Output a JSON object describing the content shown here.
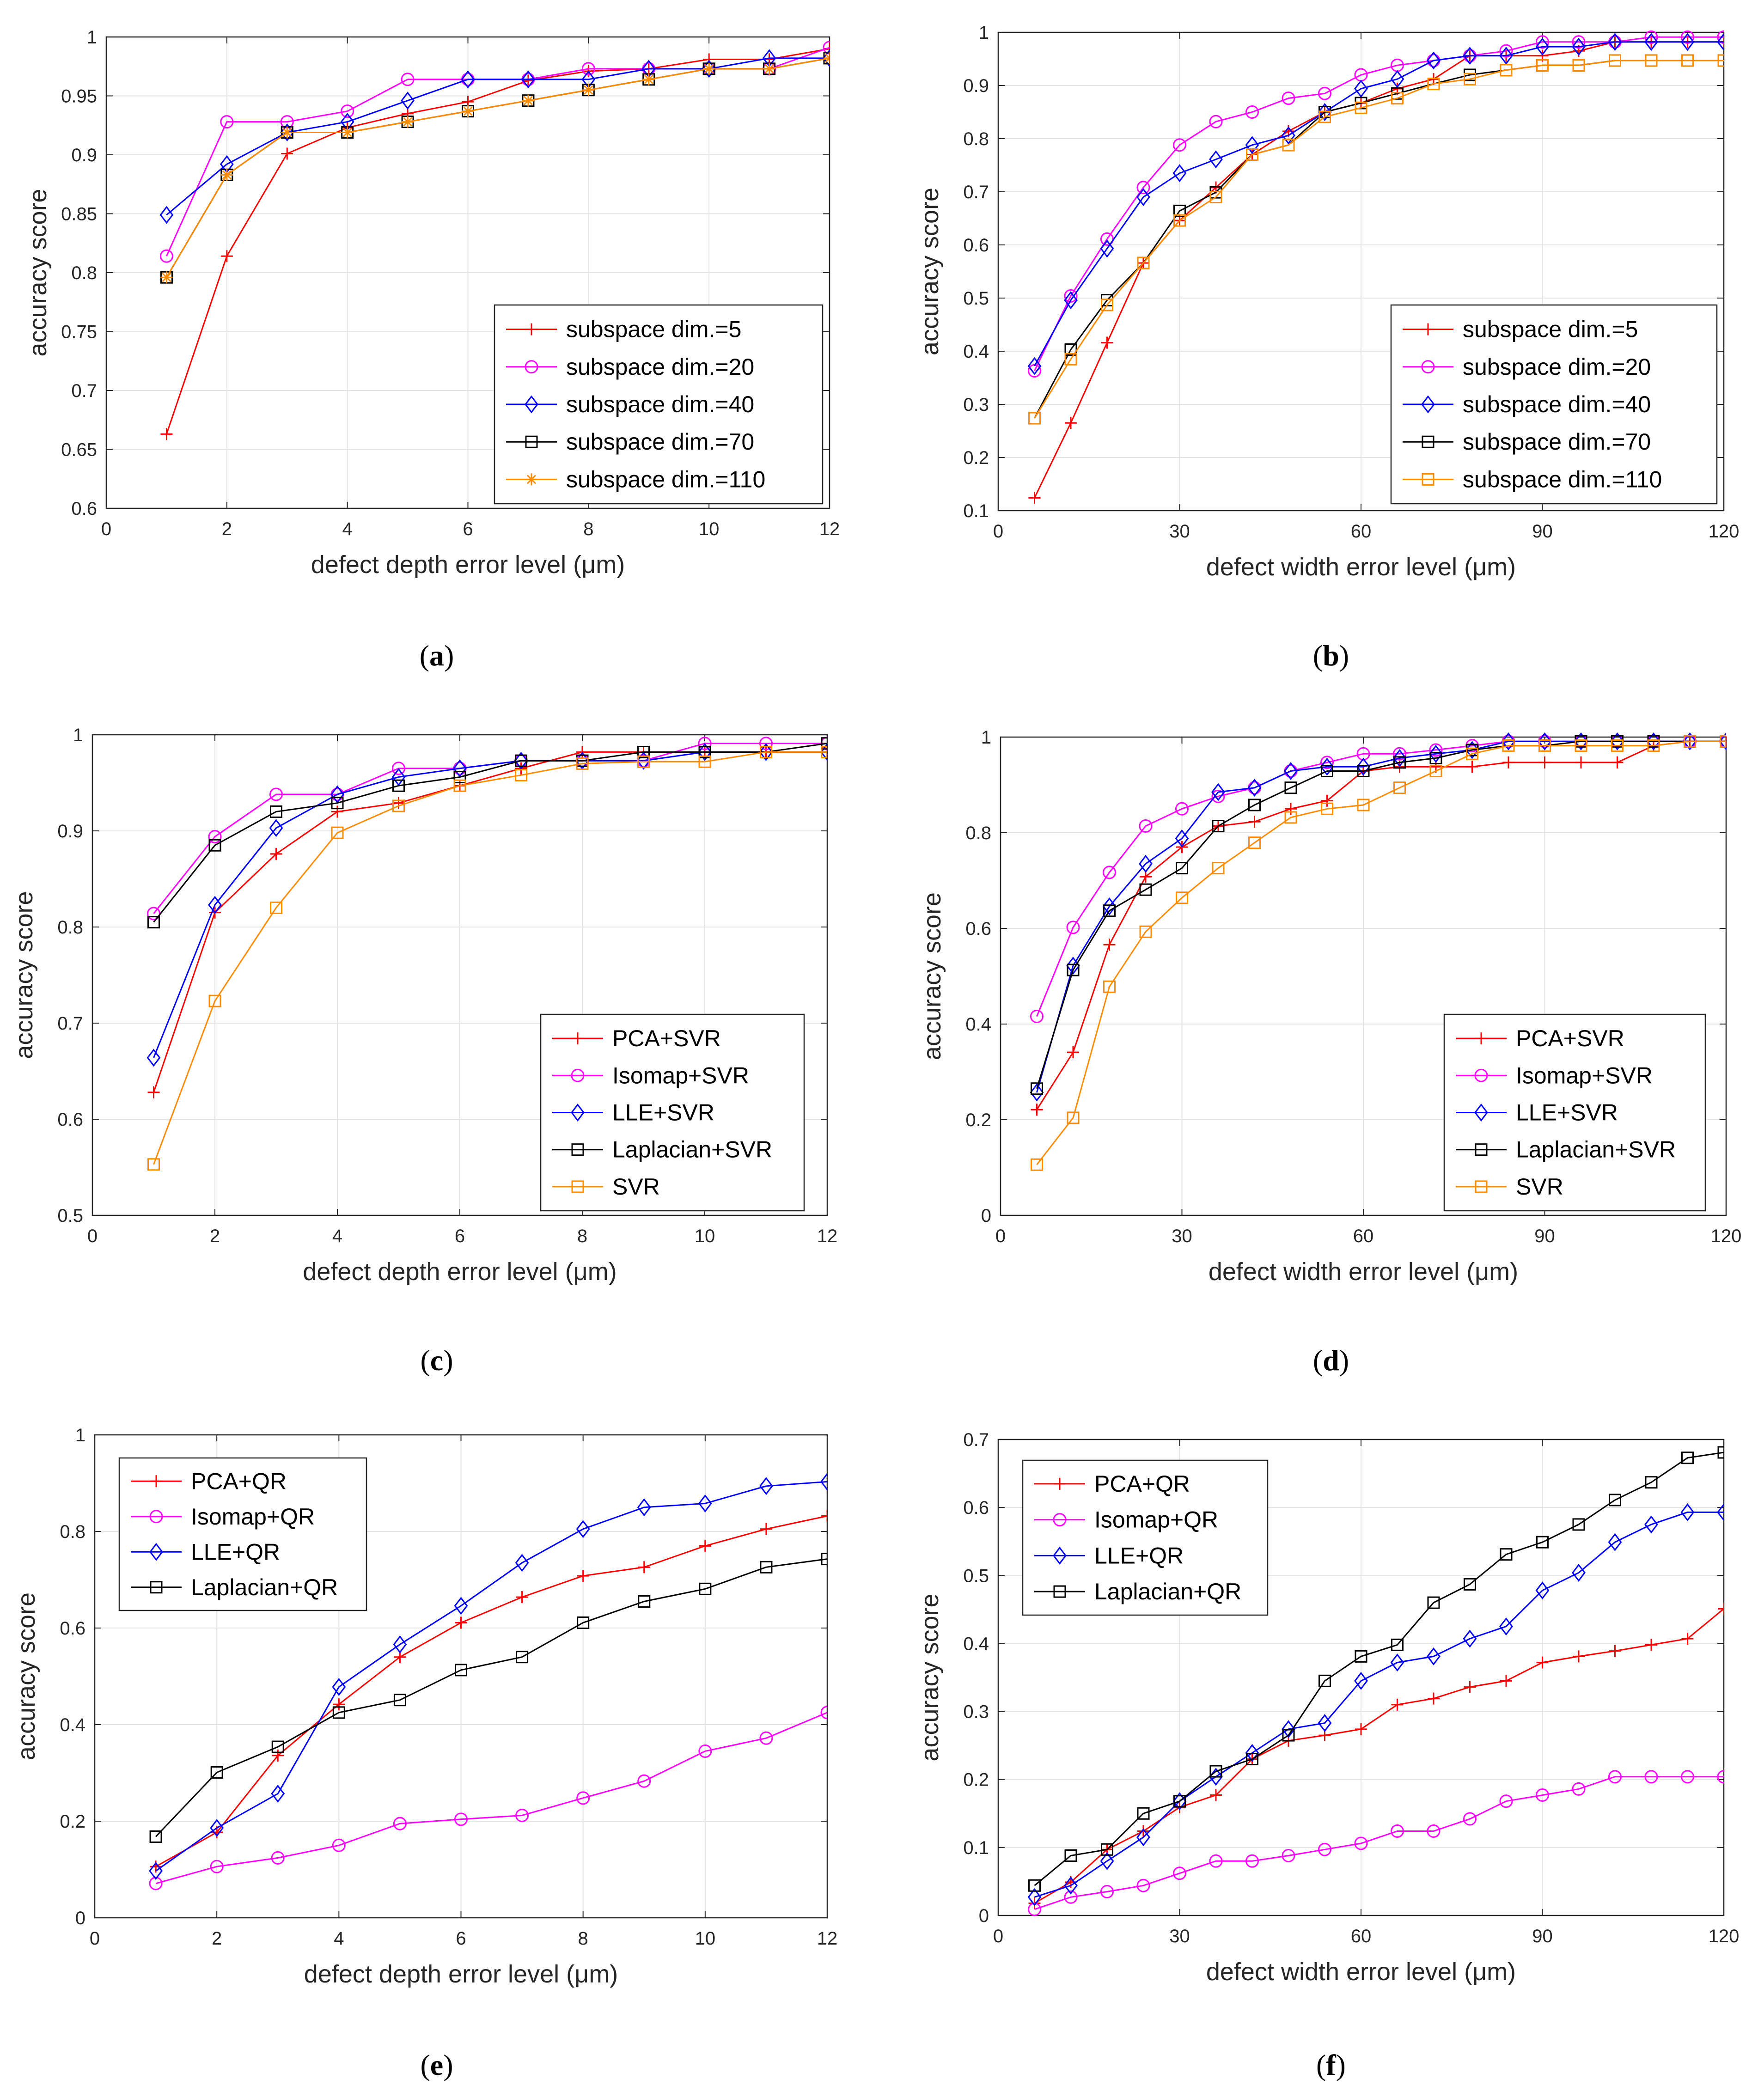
{
  "chart_data": [
    {
      "type": "line",
      "panel": "a",
      "caption": "a",
      "xlabel": "defect depth error level (μm)",
      "ylabel": "accuracy score",
      "xlim": [
        0,
        12
      ],
      "ylim": [
        0.6,
        1
      ],
      "xticks": [
        0,
        2,
        4,
        6,
        8,
        10,
        12
      ],
      "yticks": [
        0.6,
        0.65,
        0.7,
        0.75,
        0.8,
        0.85,
        0.9,
        0.95,
        1
      ],
      "ytick_labels": [
        "0.6",
        "0.65",
        "0.7",
        "0.75",
        "0.8",
        "0.85",
        "0.9",
        "0.95",
        "1"
      ],
      "x": [
        1,
        2,
        3,
        4,
        5,
        6,
        7,
        8,
        9,
        10,
        11,
        12
      ],
      "legend": "bottom-right",
      "series": [
        {
          "name": "subspace dim.=5",
          "color": "#ff0000",
          "marker": "plus",
          "values": [
            0.663,
            0.814,
            0.901,
            0.923,
            0.935,
            0.945,
            0.963,
            0.971,
            0.973,
            0.981,
            0.981,
            0.99
          ]
        },
        {
          "name": "subspace dim.=20",
          "color": "#ff00ff",
          "marker": "circle",
          "values": [
            0.814,
            0.928,
            0.928,
            0.937,
            0.964,
            0.964,
            0.964,
            0.973,
            0.973,
            0.973,
            0.973,
            0.991
          ]
        },
        {
          "name": "subspace dim.=40",
          "color": "#0000ff",
          "marker": "diamond",
          "values": [
            0.849,
            0.892,
            0.919,
            0.928,
            0.946,
            0.964,
            0.964,
            0.964,
            0.973,
            0.973,
            0.982,
            0.982
          ]
        },
        {
          "name": "subspace dim.=70",
          "color": "#000000",
          "marker": "square",
          "values": [
            0.796,
            0.883,
            0.919,
            0.919,
            0.928,
            0.937,
            0.946,
            0.955,
            0.964,
            0.973,
            0.973,
            0.982
          ]
        },
        {
          "name": "subspace dim.=110",
          "color": "#ff8c00",
          "marker": "star",
          "values": [
            0.796,
            0.883,
            0.919,
            0.919,
            0.928,
            0.937,
            0.946,
            0.955,
            0.964,
            0.973,
            0.973,
            0.982
          ]
        }
      ]
    },
    {
      "type": "line",
      "panel": "b",
      "caption": "b",
      "xlabel": "defect width error level (μm)",
      "ylabel": "accuracy score",
      "xlim": [
        0,
        120
      ],
      "ylim": [
        0.1,
        1
      ],
      "xticks": [
        0,
        30,
        60,
        90,
        120
      ],
      "yticks": [
        0.1,
        0.2,
        0.3,
        0.4,
        0.5,
        0.6,
        0.7,
        0.8,
        0.9,
        1
      ],
      "ytick_labels": [
        "0.1",
        "0.2",
        "0.3",
        "0.4",
        "0.5",
        "0.6",
        "0.7",
        "0.8",
        "0.9",
        "1"
      ],
      "x": [
        6,
        12,
        18,
        24,
        30,
        36,
        42,
        48,
        54,
        60,
        66,
        72,
        78,
        84,
        90,
        96,
        102,
        108,
        114,
        120
      ],
      "legend": "bottom-right",
      "series": [
        {
          "name": "subspace dim.=5",
          "color": "#ff0000",
          "marker": "plus",
          "values": [
            0.124,
            0.265,
            0.416,
            0.566,
            0.646,
            0.708,
            0.77,
            0.814,
            0.85,
            0.867,
            0.894,
            0.912,
            0.956,
            0.956,
            0.956,
            0.965,
            0.982,
            0.982,
            0.982,
            0.982
          ]
        },
        {
          "name": "subspace dim.=20",
          "color": "#ff00ff",
          "marker": "circle",
          "values": [
            0.363,
            0.504,
            0.611,
            0.708,
            0.788,
            0.832,
            0.85,
            0.876,
            0.885,
            0.92,
            0.938,
            0.947,
            0.956,
            0.965,
            0.982,
            0.982,
            0.982,
            0.991,
            0.991,
            0.991
          ]
        },
        {
          "name": "subspace dim.=40",
          "color": "#0000ff",
          "marker": "diamond",
          "values": [
            0.372,
            0.496,
            0.593,
            0.69,
            0.735,
            0.761,
            0.788,
            0.806,
            0.85,
            0.894,
            0.912,
            0.947,
            0.956,
            0.956,
            0.973,
            0.973,
            0.982,
            0.982,
            0.982,
            0.982
          ]
        },
        {
          "name": "subspace dim.=70",
          "color": "#000000",
          "marker": "square",
          "values": [
            0.274,
            0.403,
            0.496,
            0.566,
            0.664,
            0.699,
            0.77,
            0.788,
            0.85,
            0.867,
            0.885,
            0.903,
            0.92,
            0.929,
            0.938,
            0.938,
            0.947,
            0.947,
            0.947,
            0.947
          ]
        },
        {
          "name": "subspace dim.=110",
          "color": "#ff8c00",
          "marker": "square",
          "values": [
            0.274,
            0.385,
            0.487,
            0.566,
            0.646,
            0.69,
            0.77,
            0.788,
            0.841,
            0.858,
            0.876,
            0.903,
            0.912,
            0.929,
            0.938,
            0.938,
            0.947,
            0.947,
            0.947,
            0.947
          ]
        }
      ]
    },
    {
      "type": "line",
      "panel": "c",
      "caption": "c",
      "xlabel": "defect depth error level (μm)",
      "ylabel": "accuracy score",
      "xlim": [
        0,
        12
      ],
      "ylim": [
        0.5,
        1
      ],
      "xticks": [
        0,
        2,
        4,
        6,
        8,
        10,
        12
      ],
      "yticks": [
        0.5,
        0.6,
        0.7,
        0.8,
        0.9,
        1
      ],
      "ytick_labels": [
        "0.5",
        "0.6",
        "0.7",
        "0.8",
        "0.9",
        "1"
      ],
      "x": [
        1,
        2,
        3,
        4,
        5,
        6,
        7,
        8,
        9,
        10,
        11,
        12
      ],
      "legend": "bottom-right",
      "series": [
        {
          "name": "PCA+SVR",
          "color": "#ff0000",
          "marker": "plus",
          "values": [
            0.628,
            0.815,
            0.876,
            0.92,
            0.929,
            0.947,
            0.965,
            0.982,
            0.982,
            0.982,
            0.982,
            0.982
          ]
        },
        {
          "name": "Isomap+SVR",
          "color": "#ff00ff",
          "marker": "circle",
          "values": [
            0.814,
            0.894,
            0.938,
            0.938,
            0.965,
            0.965,
            0.973,
            0.973,
            0.973,
            0.991,
            0.991,
            0.991
          ]
        },
        {
          "name": "LLE+SVR",
          "color": "#0000ff",
          "marker": "diamond",
          "values": [
            0.664,
            0.823,
            0.903,
            0.938,
            0.956,
            0.965,
            0.973,
            0.973,
            0.973,
            0.982,
            0.982,
            0.982
          ]
        },
        {
          "name": "Laplacian+SVR",
          "color": "#000000",
          "marker": "square",
          "values": [
            0.805,
            0.885,
            0.92,
            0.929,
            0.947,
            0.956,
            0.973,
            0.973,
            0.982,
            0.982,
            0.982,
            0.991
          ]
        },
        {
          "name": "SVR",
          "color": "#ff8c00",
          "marker": "square",
          "values": [
            0.553,
            0.723,
            0.82,
            0.898,
            0.926,
            0.947,
            0.958,
            0.97,
            0.972,
            0.972,
            0.982,
            0.982
          ]
        }
      ]
    },
    {
      "type": "line",
      "panel": "d",
      "caption": "d",
      "xlabel": "defect width error level (μm)",
      "ylabel": "accuracy score",
      "xlim": [
        0,
        120
      ],
      "ylim": [
        0,
        1
      ],
      "xticks": [
        0,
        30,
        60,
        90,
        120
      ],
      "yticks": [
        0,
        0.2,
        0.4,
        0.6,
        0.8,
        1
      ],
      "ytick_labels": [
        "0",
        "0.2",
        "0.4",
        "0.6",
        "0.8",
        "1"
      ],
      "x": [
        6,
        12,
        18,
        24,
        30,
        36,
        42,
        48,
        54,
        60,
        66,
        72,
        78,
        84,
        90,
        96,
        102,
        108,
        114,
        120
      ],
      "legend": "bottom-right",
      "series": [
        {
          "name": "PCA+SVR",
          "color": "#ff0000",
          "marker": "plus",
          "values": [
            0.221,
            0.341,
            0.566,
            0.708,
            0.77,
            0.814,
            0.823,
            0.85,
            0.867,
            0.929,
            0.938,
            0.938,
            0.938,
            0.947,
            0.947,
            0.947,
            0.947,
            0.982,
            0.991,
            0.991
          ]
        },
        {
          "name": "Isomap+SVR",
          "color": "#ff00ff",
          "marker": "circle",
          "values": [
            0.416,
            0.602,
            0.717,
            0.814,
            0.85,
            0.876,
            0.894,
            0.929,
            0.947,
            0.965,
            0.965,
            0.973,
            0.982,
            0.991,
            0.991,
            0.991,
            0.991,
            0.991,
            0.991,
            0.991
          ]
        },
        {
          "name": "LLE+SVR",
          "color": "#0000ff",
          "marker": "diamond",
          "values": [
            0.257,
            0.522,
            0.646,
            0.735,
            0.788,
            0.885,
            0.894,
            0.929,
            0.938,
            0.938,
            0.956,
            0.965,
            0.973,
            0.991,
            0.991,
            0.991,
            0.991,
            0.991,
            0.991,
            0.991
          ]
        },
        {
          "name": "Laplacian+SVR",
          "color": "#000000",
          "marker": "square",
          "values": [
            0.265,
            0.513,
            0.637,
            0.681,
            0.726,
            0.814,
            0.858,
            0.894,
            0.929,
            0.929,
            0.947,
            0.956,
            0.973,
            0.982,
            0.982,
            0.991,
            0.991,
            0.991,
            0.991,
            0.991
          ]
        },
        {
          "name": "SVR",
          "color": "#ff8c00",
          "marker": "square",
          "values": [
            0.106,
            0.204,
            0.478,
            0.593,
            0.664,
            0.726,
            0.779,
            0.832,
            0.85,
            0.858,
            0.894,
            0.929,
            0.965,
            0.982,
            0.982,
            0.982,
            0.982,
            0.982,
            0.991,
            0.991
          ]
        }
      ]
    },
    {
      "type": "line",
      "panel": "e",
      "caption": "e",
      "xlabel": "defect depth error level (μm)",
      "ylabel": "accuracy score",
      "xlim": [
        0,
        12
      ],
      "ylim": [
        0,
        1
      ],
      "xticks": [
        0,
        2,
        4,
        6,
        8,
        10,
        12
      ],
      "yticks": [
        0,
        0.2,
        0.4,
        0.6,
        0.8,
        1
      ],
      "ytick_labels": [
        "0",
        "0.2",
        "0.4",
        "0.6",
        "0.8",
        "1"
      ],
      "x": [
        1,
        2,
        3,
        4,
        5,
        6,
        7,
        8,
        9,
        10,
        11,
        12
      ],
      "legend": "top-left",
      "series": [
        {
          "name": "PCA+QR",
          "color": "#ff0000",
          "marker": "plus",
          "values": [
            0.106,
            0.177,
            0.336,
            0.442,
            0.54,
            0.611,
            0.664,
            0.708,
            0.726,
            0.77,
            0.805,
            0.832
          ]
        },
        {
          "name": "Isomap+QR",
          "color": "#ff00ff",
          "marker": "circle",
          "values": [
            0.071,
            0.106,
            0.124,
            0.15,
            0.195,
            0.204,
            0.212,
            0.248,
            0.283,
            0.345,
            0.372,
            0.425
          ]
        },
        {
          "name": "LLE+QR",
          "color": "#0000ff",
          "marker": "diamond",
          "values": [
            0.097,
            0.186,
            0.257,
            0.478,
            0.566,
            0.646,
            0.735,
            0.805,
            0.85,
            0.858,
            0.894,
            0.903
          ]
        },
        {
          "name": "Laplacian+QR",
          "color": "#000000",
          "marker": "square",
          "values": [
            0.168,
            0.301,
            0.354,
            0.425,
            0.451,
            0.513,
            0.54,
            0.611,
            0.655,
            0.681,
            0.726,
            0.743
          ]
        }
      ]
    },
    {
      "type": "line",
      "panel": "f",
      "caption": "f",
      "xlabel": "defect width error level (μm)",
      "ylabel": "accuracy score",
      "xlim": [
        0,
        120
      ],
      "ylim": [
        0,
        0.7
      ],
      "xticks": [
        0,
        30,
        60,
        90,
        120
      ],
      "yticks": [
        0,
        0.1,
        0.2,
        0.3,
        0.4,
        0.5,
        0.6,
        0.7
      ],
      "ytick_labels": [
        "0",
        "0.1",
        "0.2",
        "0.3",
        "0.4",
        "0.5",
        "0.6",
        "0.7"
      ],
      "x": [
        6,
        12,
        18,
        24,
        30,
        36,
        42,
        48,
        54,
        60,
        66,
        72,
        78,
        84,
        90,
        96,
        102,
        108,
        114,
        120
      ],
      "legend": "top-left",
      "series": [
        {
          "name": "PCA+QR",
          "color": "#ff0000",
          "marker": "plus",
          "values": [
            0.018,
            0.049,
            0.097,
            0.124,
            0.159,
            0.177,
            0.23,
            0.257,
            0.265,
            0.274,
            0.31,
            0.319,
            0.336,
            0.345,
            0.372,
            0.381,
            0.389,
            0.398,
            0.407,
            0.451
          ]
        },
        {
          "name": "Isomap+QR",
          "color": "#ff00ff",
          "marker": "circle",
          "values": [
            0.009,
            0.027,
            0.035,
            0.044,
            0.062,
            0.08,
            0.08,
            0.088,
            0.097,
            0.106,
            0.124,
            0.124,
            0.142,
            0.168,
            0.177,
            0.186,
            0.204,
            0.204,
            0.204,
            0.204
          ]
        },
        {
          "name": "LLE+QR",
          "color": "#0000ff",
          "marker": "diamond",
          "values": [
            0.027,
            0.044,
            0.08,
            0.115,
            0.168,
            0.204,
            0.239,
            0.274,
            0.283,
            0.345,
            0.372,
            0.381,
            0.407,
            0.425,
            0.478,
            0.504,
            0.549,
            0.575,
            0.593,
            0.593
          ]
        },
        {
          "name": "Laplacian+QR",
          "color": "#000000",
          "marker": "square",
          "values": [
            0.044,
            0.088,
            0.097,
            0.15,
            0.168,
            0.212,
            0.23,
            0.265,
            0.345,
            0.381,
            0.398,
            0.46,
            0.487,
            0.531,
            0.549,
            0.575,
            0.611,
            0.637,
            0.673,
            0.681
          ]
        }
      ]
    }
  ]
}
